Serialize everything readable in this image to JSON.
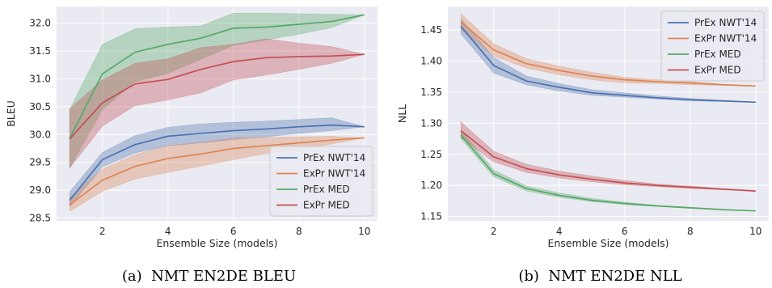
{
  "theme": {
    "plot_bg": "#eaeaf2",
    "grid": "#ffffff",
    "colors": {
      "blue": "#4c72b0",
      "orange": "#dd8452",
      "green": "#55a868",
      "red": "#c44e52"
    }
  },
  "chart_data": [
    {
      "type": "line",
      "caption": "(a)  NMT EN2DE BLEU",
      "xlabel": "Ensemble Size (models)",
      "ylabel": "BLEU",
      "xlim": [
        0.6,
        10.4
      ],
      "ylim": [
        28.45,
        32.3
      ],
      "xticks": [
        2,
        4,
        6,
        8,
        10
      ],
      "yticks": [
        28.5,
        29.0,
        29.5,
        30.0,
        30.5,
        31.0,
        31.5,
        32.0
      ],
      "ytick_labels": [
        "28.5",
        "29.0",
        "29.5",
        "30.0",
        "30.5",
        "31.0",
        "31.5",
        "32.0"
      ],
      "grid": true,
      "legend_position": "lower-right",
      "x": [
        1,
        2,
        3,
        4,
        5,
        6,
        7,
        8,
        9,
        10
      ],
      "series": [
        {
          "name": "PrEx NWT'14",
          "color": "blue",
          "values": [
            28.82,
            29.55,
            29.82,
            29.97,
            30.02,
            30.07,
            30.1,
            30.14,
            30.17,
            30.14
          ],
          "lower": [
            28.7,
            29.42,
            29.67,
            29.8,
            29.85,
            29.91,
            29.96,
            30.02,
            30.07,
            30.14
          ],
          "upper": [
            28.97,
            29.68,
            29.98,
            30.13,
            30.19,
            30.22,
            30.24,
            30.27,
            30.3,
            30.14
          ]
        },
        {
          "name": "ExPr NWT'14",
          "color": "orange",
          "values": [
            28.74,
            29.18,
            29.43,
            29.57,
            29.65,
            29.75,
            29.8,
            29.85,
            29.9,
            29.94
          ],
          "lower": [
            28.62,
            28.98,
            29.2,
            29.32,
            29.43,
            29.55,
            29.66,
            29.74,
            29.83,
            29.94
          ],
          "upper": [
            28.87,
            29.38,
            29.64,
            29.8,
            29.86,
            29.94,
            29.95,
            29.96,
            29.97,
            29.94
          ]
        },
        {
          "name": "PrEx MED",
          "color": "green",
          "values": [
            29.93,
            31.09,
            31.48,
            31.62,
            31.73,
            31.91,
            31.93,
            31.98,
            32.03,
            32.15
          ],
          "lower": [
            29.4,
            30.45,
            30.95,
            31.1,
            31.35,
            31.6,
            31.7,
            31.8,
            31.92,
            32.15
          ],
          "upper": [
            30.45,
            31.62,
            31.9,
            31.93,
            31.95,
            32.18,
            32.18,
            32.17,
            32.16,
            32.15
          ]
        },
        {
          "name": "ExPr MED",
          "color": "red",
          "values": [
            29.92,
            30.57,
            30.91,
            30.99,
            31.17,
            31.31,
            31.38,
            31.4,
            31.41,
            31.44
          ],
          "lower": [
            29.4,
            30.15,
            30.52,
            30.62,
            30.75,
            30.98,
            31.07,
            31.17,
            31.28,
            31.44
          ],
          "upper": [
            30.46,
            30.98,
            31.28,
            31.36,
            31.56,
            31.62,
            31.72,
            31.64,
            31.58,
            31.44
          ]
        }
      ]
    },
    {
      "type": "line",
      "caption": "(b)  NMT EN2DE NLL",
      "xlabel": "Ensemble Size (models)",
      "ylabel": "NLL",
      "xlim": [
        0.6,
        10.4
      ],
      "ylim": [
        1.143,
        1.488
      ],
      "xticks": [
        2,
        4,
        6,
        8,
        10
      ],
      "yticks": [
        1.15,
        1.2,
        1.25,
        1.3,
        1.35,
        1.4,
        1.45
      ],
      "ytick_labels": [
        "1.15",
        "1.20",
        "1.25",
        "1.30",
        "1.35",
        "1.40",
        "1.45"
      ],
      "grid": true,
      "legend_position": "top-right",
      "x": [
        1,
        2,
        3,
        4,
        5,
        6,
        7,
        8,
        9,
        10
      ],
      "series": [
        {
          "name": "PrEx NWT'14",
          "color": "blue",
          "values": [
            1.456,
            1.393,
            1.368,
            1.358,
            1.349,
            1.345,
            1.341,
            1.338,
            1.336,
            1.334
          ],
          "lower": [
            1.444,
            1.381,
            1.362,
            1.352,
            1.345,
            1.342,
            1.339,
            1.336,
            1.335,
            1.334
          ],
          "upper": [
            1.468,
            1.406,
            1.376,
            1.364,
            1.354,
            1.349,
            1.344,
            1.34,
            1.337,
            1.334
          ]
        },
        {
          "name": "ExPr NWT'14",
          "color": "orange",
          "values": [
            1.463,
            1.418,
            1.396,
            1.385,
            1.376,
            1.37,
            1.367,
            1.365,
            1.362,
            1.36
          ],
          "lower": [
            1.451,
            1.408,
            1.389,
            1.378,
            1.37,
            1.365,
            1.364,
            1.362,
            1.361,
            1.36
          ],
          "upper": [
            1.476,
            1.428,
            1.404,
            1.392,
            1.382,
            1.374,
            1.37,
            1.367,
            1.363,
            1.36
          ]
        },
        {
          "name": "PrEx MED",
          "color": "green",
          "values": [
            1.281,
            1.219,
            1.195,
            1.184,
            1.176,
            1.171,
            1.167,
            1.164,
            1.161,
            1.159
          ],
          "lower": [
            1.275,
            1.214,
            1.191,
            1.181,
            1.174,
            1.169,
            1.166,
            1.163,
            1.161,
            1.159
          ],
          "upper": [
            1.289,
            1.225,
            1.199,
            1.188,
            1.179,
            1.173,
            1.168,
            1.165,
            1.162,
            1.159
          ]
        },
        {
          "name": "ExPr MED",
          "color": "red",
          "values": [
            1.288,
            1.246,
            1.227,
            1.217,
            1.21,
            1.204,
            1.2,
            1.197,
            1.194,
            1.191
          ],
          "lower": [
            1.277,
            1.238,
            1.221,
            1.212,
            1.206,
            1.201,
            1.198,
            1.195,
            1.193,
            1.191
          ],
          "upper": [
            1.302,
            1.255,
            1.234,
            1.223,
            1.215,
            1.208,
            1.202,
            1.199,
            1.195,
            1.191
          ]
        }
      ]
    }
  ]
}
